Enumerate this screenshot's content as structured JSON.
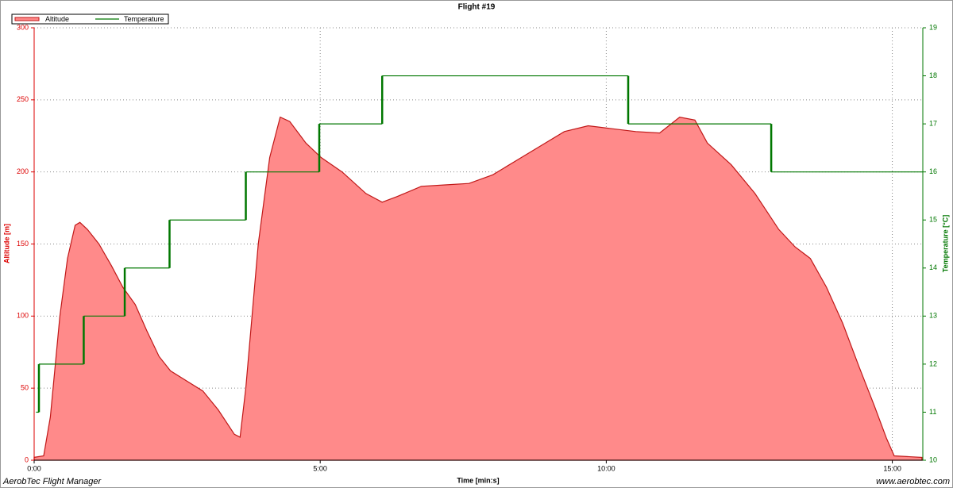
{
  "chart_data": {
    "type": "area-step",
    "title": "Flight #19",
    "xlabel": "Time [min:s]",
    "ylabel": "Altitude [m]",
    "y2label": "Temperature [°C]",
    "xlim": [
      0,
      932
    ],
    "xticks": [
      {
        "value": 0,
        "label": "0:00"
      },
      {
        "value": 300,
        "label": "5:00"
      },
      {
        "value": 600,
        "label": "10:00"
      },
      {
        "value": 900,
        "label": "15:00"
      }
    ],
    "ylim": [
      0,
      300
    ],
    "yticks": [
      0,
      50,
      100,
      150,
      200,
      250,
      300
    ],
    "y2lim": [
      10,
      19
    ],
    "y2ticks": [
      10,
      11,
      12,
      13,
      14,
      15,
      16,
      17,
      18,
      19
    ],
    "grid": true,
    "legend": "top-left",
    "series": [
      {
        "name": "Altitude",
        "color": "#ff8a8a",
        "kind": "area",
        "x": [
          0,
          10,
          17,
          27,
          35,
          43,
          48,
          56,
          68,
          81,
          93,
          106,
          118,
          131,
          143,
          160,
          177,
          193,
          210,
          216,
          222,
          235,
          247,
          258,
          268,
          285,
          301,
          323,
          348,
          365,
          381,
          406,
          431,
          456,
          481,
          506,
          531,
          556,
          581,
          606,
          631,
          656,
          677,
          693,
          706,
          731,
          756,
          781,
          798,
          814,
          831,
          848,
          865,
          881,
          894,
          902,
          931
        ],
        "values": [
          2,
          3,
          30,
          100,
          140,
          163,
          165,
          160,
          150,
          135,
          120,
          108,
          90,
          72,
          62,
          55,
          48,
          35,
          18,
          16,
          50,
          150,
          210,
          238,
          235,
          220,
          210,
          200,
          185,
          179,
          183,
          190,
          191,
          192,
          198,
          208,
          218,
          228,
          232,
          230,
          228,
          227,
          238,
          236,
          220,
          205,
          185,
          160,
          148,
          140,
          120,
          95,
          65,
          38,
          15,
          3,
          2
        ]
      },
      {
        "name": "Temperature",
        "color": "#007700",
        "kind": "step",
        "axis": "y2",
        "x": [
          2,
          5,
          52,
          95,
          142,
          222,
          299,
          365,
          623,
          773,
          932
        ],
        "values": [
          11,
          12,
          13,
          14,
          15,
          16,
          17,
          18,
          17,
          16,
          16
        ]
      }
    ]
  },
  "footer": {
    "left": "AerobTec Flight Manager",
    "right": "www.aerobtec.com"
  }
}
